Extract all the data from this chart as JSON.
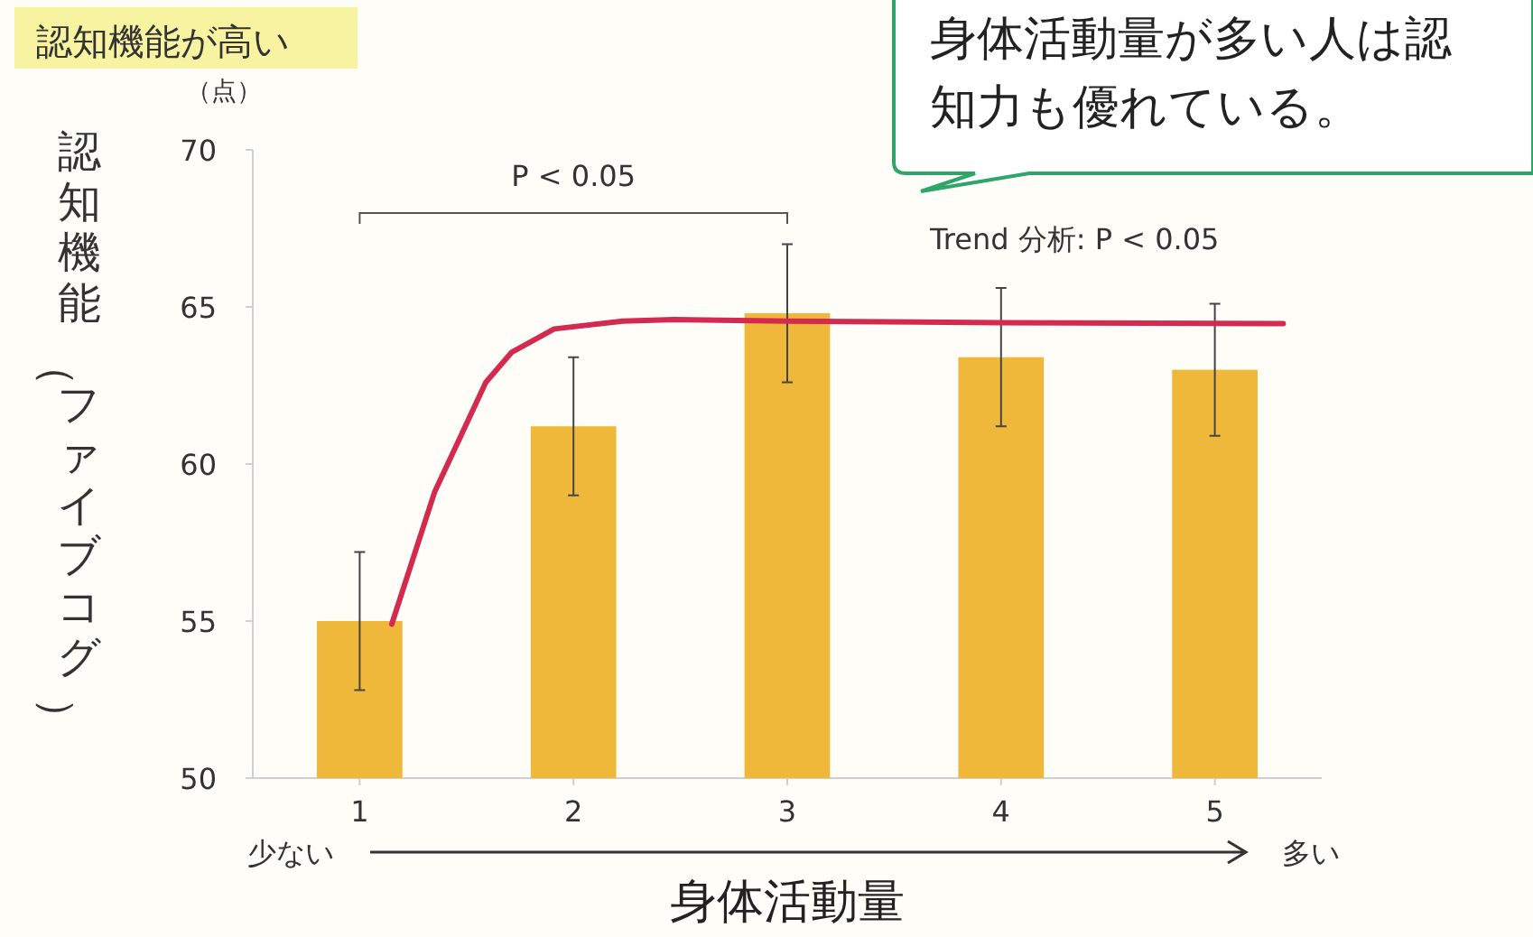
{
  "chart_data": {
    "type": "bar",
    "xlabel": "身体活動量",
    "ylabel": "認知機能（ファイブコグ）",
    "x": [
      1,
      2,
      3,
      4,
      5
    ],
    "xlim": [
      0.5,
      5.5
    ],
    "xticks": [
      1,
      2,
      3,
      4,
      5
    ],
    "ylim": [
      50,
      70
    ],
    "yticks": [
      50,
      55,
      60,
      65,
      70
    ],
    "grid": false,
    "series": [
      {
        "color": "#f0b83a",
        "values": [
          55.0,
          61.2,
          64.8,
          63.4,
          63.0
        ],
        "errors": [
          2.2,
          2.2,
          2.2,
          2.2,
          2.1
        ]
      },
      {
        "type": "line",
        "color": "#d42a50",
        "x": [
          1.15,
          1.35,
          1.59,
          1.71,
          1.91,
          2.23,
          2.47,
          3.0,
          4.0,
          5.32
        ],
        "values": [
          54.9,
          59.1,
          62.6,
          63.55,
          64.3,
          64.55,
          64.6,
          64.55,
          64.5,
          64.47
        ]
      }
    ],
    "annotations": [
      "P < 0.05",
      "Trend 分析:  P < 0.05",
      "認知機能が高い",
      "（点）",
      "少ない",
      "多い",
      "身体活動量が多い人は認知力も優れている。"
    ]
  }
}
